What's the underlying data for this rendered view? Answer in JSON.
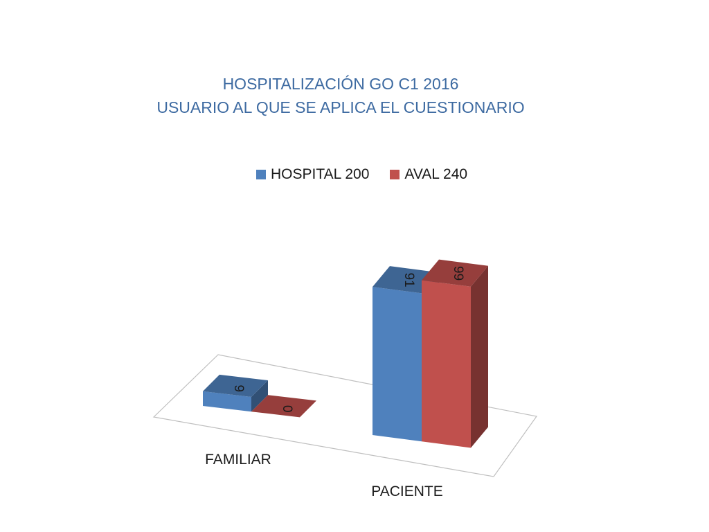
{
  "chart_data": {
    "type": "bar",
    "variant": "3d-clustered-column",
    "title": [
      "HOSPITALIZACIÓN GO C1 2016",
      "USUARIO AL QUE SE APLICA EL CUESTIONARIO"
    ],
    "categories": [
      "FAMILIAR",
      "PACIENTE"
    ],
    "series": [
      {
        "name": "HOSPITAL 200",
        "values": [
          9,
          91
        ],
        "color": "#4f81bd"
      },
      {
        "name": "AVAL 240",
        "values": [
          0,
          99
        ],
        "color": "#c0504d"
      }
    ],
    "ylim": [
      0,
      100
    ],
    "legend": "top",
    "grid": false,
    "data_labels": true,
    "data_label_rotation": "vertical"
  }
}
